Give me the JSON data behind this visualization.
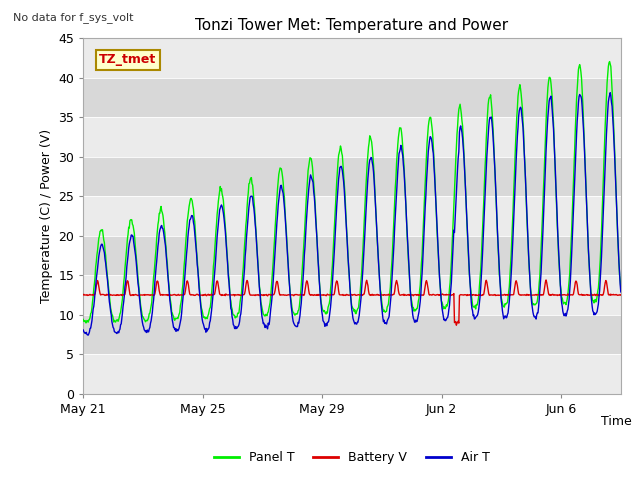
{
  "title": "Tonzi Tower Met: Temperature and Power",
  "top_left_text": "No data for f_sys_volt",
  "label_box_text": "TZ_tmet",
  "ylabel": "Temperature (C) / Power (V)",
  "xlabel": "Time",
  "ylim": [
    0,
    45
  ],
  "yticks": [
    0,
    5,
    10,
    15,
    20,
    25,
    30,
    35,
    40,
    45
  ],
  "xtick_labels": [
    "May 21",
    "May 25",
    "May 29",
    "Jun 2",
    "Jun 6"
  ],
  "panel_color": "#00ee00",
  "battery_color": "#dd0000",
  "air_color": "#0000cc",
  "legend_labels": [
    "Panel T",
    "Battery V",
    "Air T"
  ],
  "background_color": "#ffffff",
  "plot_bg_light": "#ebebeb",
  "plot_bg_dark": "#d8d8d8",
  "title_fontsize": 11,
  "axis_fontsize": 9,
  "legend_fontsize": 9
}
